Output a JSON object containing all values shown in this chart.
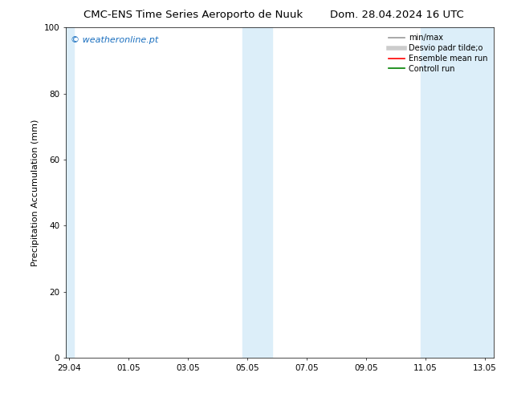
{
  "title_left": "CMC-ENS Time Series Aeroporto de Nuuk",
  "title_right": "Dom. 28.04.2024 16 UTC",
  "ylabel": "Precipitation Accumulation (mm)",
  "ylim": [
    0,
    100
  ],
  "yticks": [
    0,
    20,
    40,
    60,
    80,
    100
  ],
  "xtick_labels": [
    "29.04",
    "01.05",
    "03.05",
    "05.05",
    "07.05",
    "09.05",
    "11.05",
    "13.05"
  ],
  "xtick_positions": [
    0,
    2,
    4,
    6,
    8,
    10,
    12,
    14
  ],
  "xlim": [
    -0.1,
    14.3
  ],
  "shaded_bands": [
    {
      "x_start": -0.1,
      "x_end": 0.15,
      "color": "#dceef9"
    },
    {
      "x_start": 5.85,
      "x_end": 6.85,
      "color": "#dceef9"
    },
    {
      "x_start": 11.85,
      "x_end": 14.3,
      "color": "#dceef9"
    }
  ],
  "watermark_text": "© weatheronline.pt",
  "watermark_color": "#1a6fbf",
  "legend_entries": [
    {
      "label": "min/max",
      "color": "#999999",
      "lw": 1.2,
      "linestyle": "-"
    },
    {
      "label": "Desvio padr tilde;o",
      "color": "#cccccc",
      "lw": 4,
      "linestyle": "-"
    },
    {
      "label": "Ensemble mean run",
      "color": "#ff0000",
      "lw": 1.2,
      "linestyle": "-"
    },
    {
      "label": "Controll run",
      "color": "#008000",
      "lw": 1.2,
      "linestyle": "-"
    }
  ],
  "bg_color": "#ffffff",
  "plot_bg_color": "#ffffff",
  "title_fontsize": 9.5,
  "tick_fontsize": 7.5,
  "label_fontsize": 8,
  "watermark_fontsize": 8,
  "legend_fontsize": 7
}
